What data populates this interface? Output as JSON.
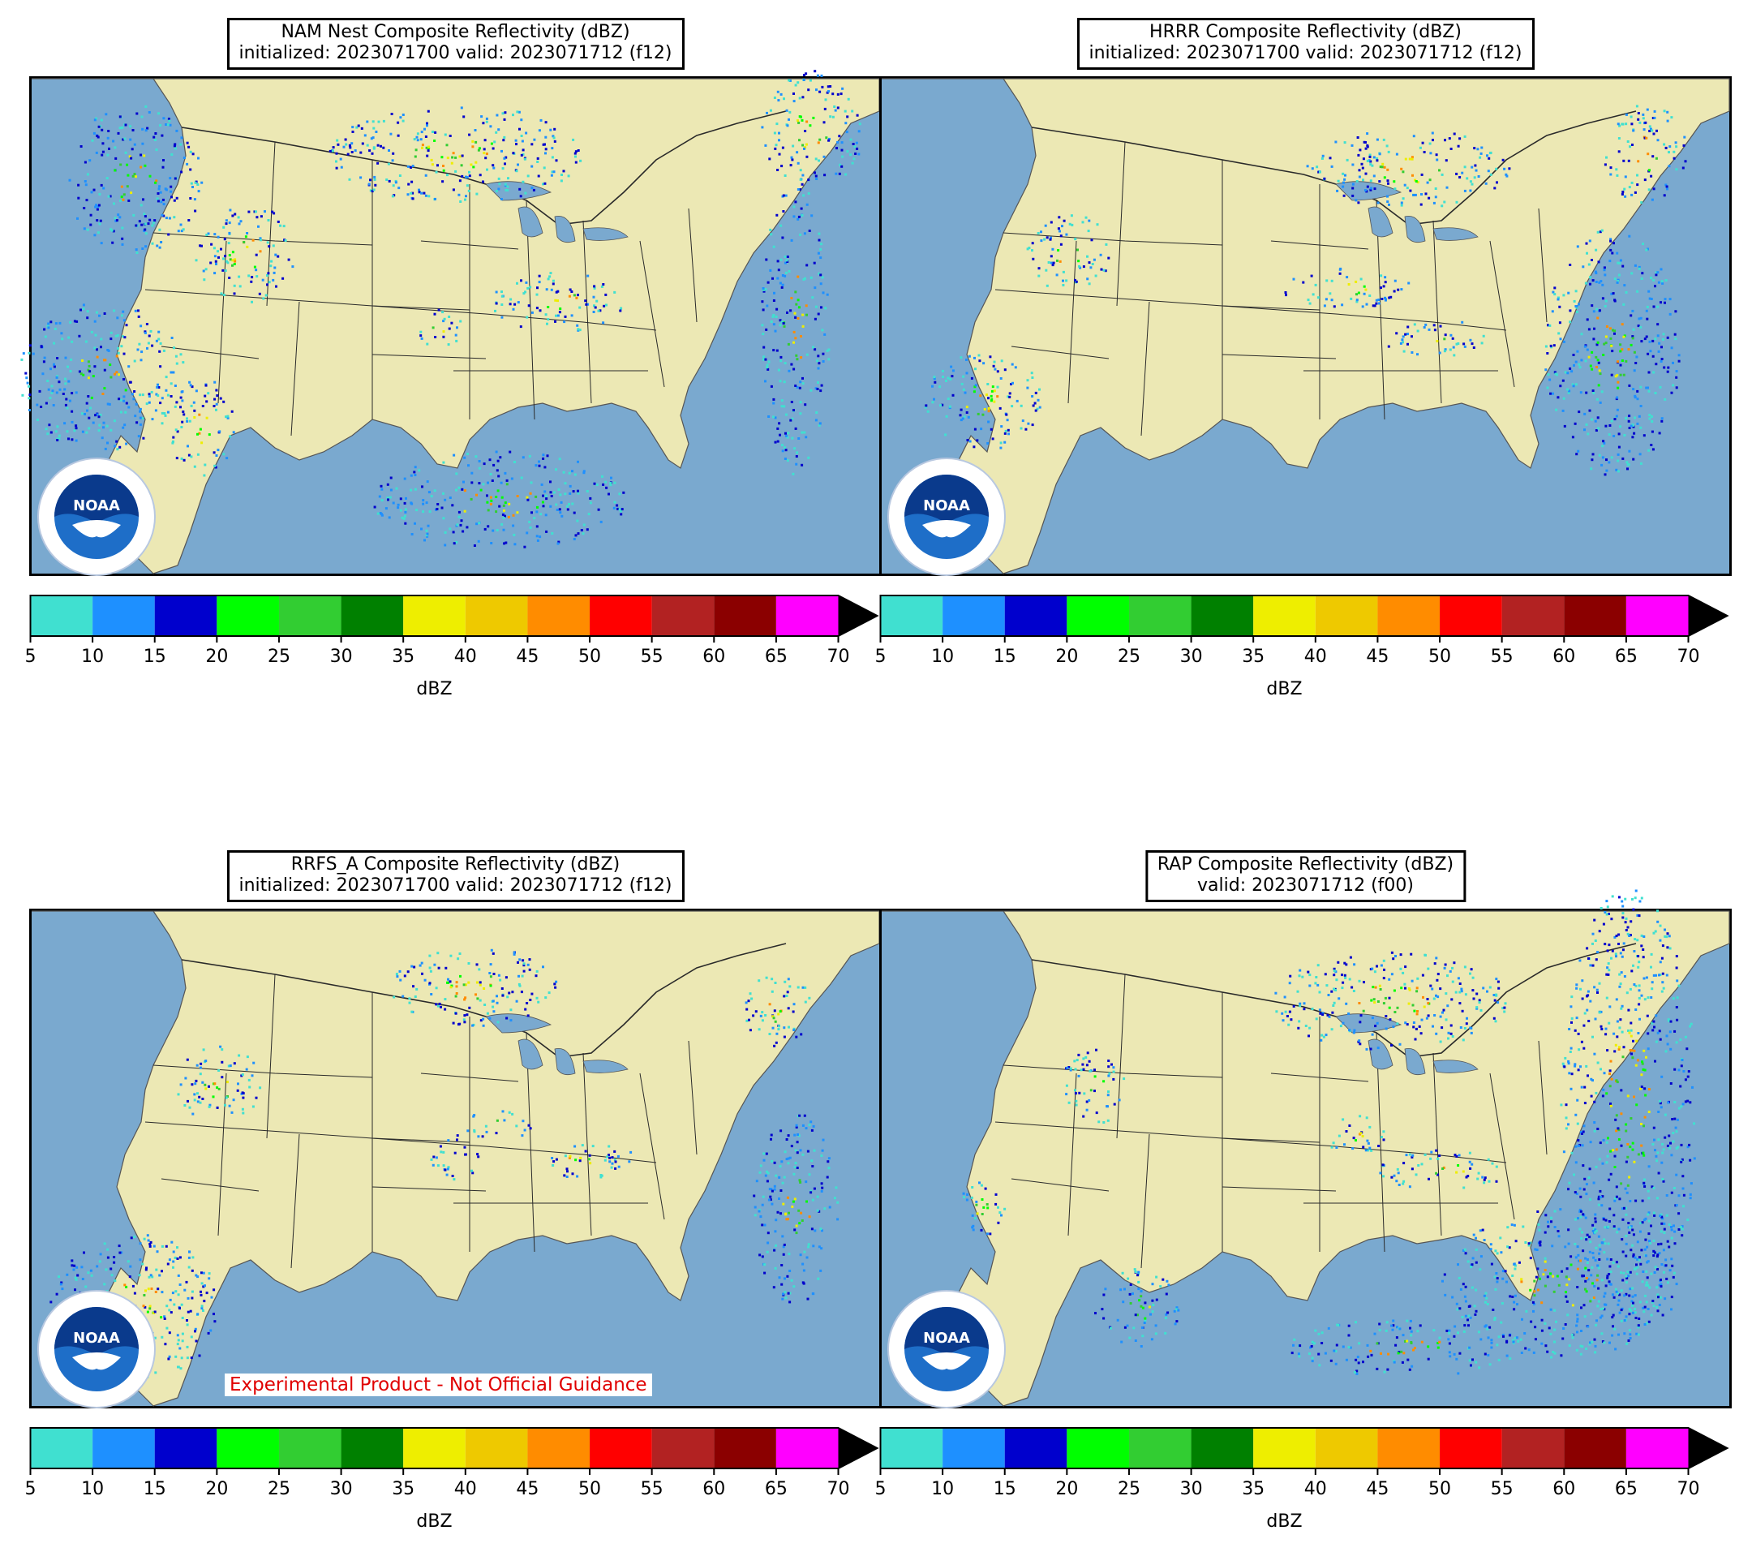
{
  "panels": [
    {
      "id": "nam",
      "title_line1": "NAM Nest Composite Reflectivity (dBZ)",
      "title_line2": "initialized: 2023071700 valid: 2023071712 (f12)",
      "experimental_note": ""
    },
    {
      "id": "hrrr",
      "title_line1": "HRRR Composite Reflectivity (dBZ)",
      "title_line2": "initialized: 2023071700 valid: 2023071712 (f12)",
      "experimental_note": ""
    },
    {
      "id": "rrfs",
      "title_line1": "RRFS_A Composite Reflectivity (dBZ)",
      "title_line2": "initialized: 2023071700 valid: 2023071712 (f12)",
      "experimental_note": "Experimental Product - Not Official Guidance"
    },
    {
      "id": "rap",
      "title_line1": "RAP Composite Reflectivity (dBZ)",
      "title_line2": "valid: 2023071712 (f00)",
      "experimental_note": ""
    }
  ],
  "logo_text": "NOAA",
  "colorbar": {
    "label": "dBZ",
    "ticks": [
      "5",
      "10",
      "15",
      "20",
      "25",
      "30",
      "35",
      "40",
      "45",
      "50",
      "55",
      "60",
      "65",
      "70"
    ],
    "colors": [
      "#40e0d0",
      "#1e90ff",
      "#0000cd",
      "#00ff00",
      "#32cd32",
      "#008000",
      "#eeee00",
      "#eec900",
      "#ff8c00",
      "#ff0000",
      "#b22222",
      "#8b0000",
      "#ff00ff"
    ],
    "extend_color": "#000000"
  },
  "map_colors": {
    "ocean": "#7aa9cf",
    "land": "#ece8b4",
    "border": "#2a2a2a"
  }
}
